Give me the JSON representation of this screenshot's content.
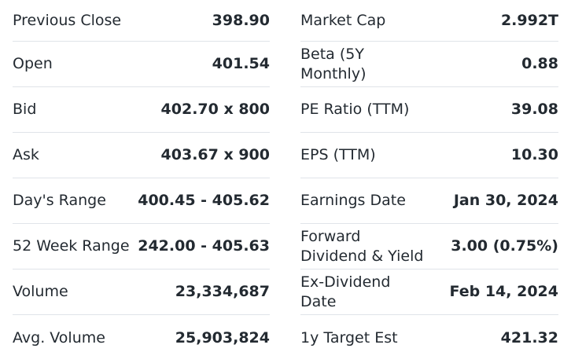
{
  "left_stats": [
    {
      "label": "Previous Close",
      "value": "398.90"
    },
    {
      "label": "Open",
      "value": "401.54"
    },
    {
      "label": "Bid",
      "value": "402.70 x 800"
    },
    {
      "label": "Ask",
      "value": "403.67 x 900"
    },
    {
      "label": "Day's Range",
      "value": "400.45 - 405.62"
    },
    {
      "label": "52 Week Range",
      "value": "242.00 - 405.63"
    },
    {
      "label": "Volume",
      "value": "23,334,687"
    },
    {
      "label": "Avg. Volume",
      "value": "25,903,824"
    }
  ],
  "right_stats": [
    {
      "label": "Market Cap",
      "value": "2.992T"
    },
    {
      "label": "Beta (5Y Monthly)",
      "value": "0.88"
    },
    {
      "label": "PE Ratio (TTM)",
      "value": "39.08"
    },
    {
      "label": "EPS (TTM)",
      "value": "10.30"
    },
    {
      "label": "Earnings Date",
      "value": "Jan 30, 2024"
    },
    {
      "label": "Forward Dividend & Yield",
      "value": "3.00 (0.75%)"
    },
    {
      "label": "Ex-Dividend Date",
      "value": "Feb 14, 2024"
    },
    {
      "label": "1y Target Est",
      "value": "421.32"
    }
  ],
  "colors": {
    "text": "#232a31",
    "divider": "#e0e4e9",
    "background": "#ffffff"
  }
}
